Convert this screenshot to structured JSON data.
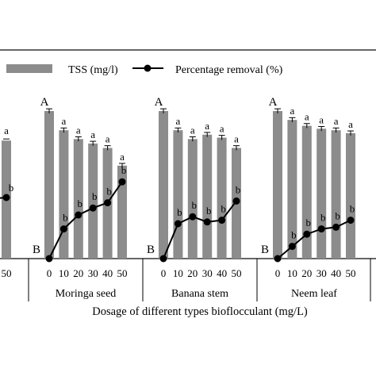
{
  "chart_data": {
    "type": "bar",
    "xlabel": "Dosage of different types bioflocculant (mg/L)",
    "legend": {
      "placement": "top",
      "bar_label": "TSS (mg/l)",
      "line_label": "Percentage removal (%)"
    },
    "colors": {
      "bar": "#8c8c8c",
      "line": "#000000"
    },
    "dosages": [
      "0",
      "10",
      "20",
      "30",
      "40",
      "50"
    ],
    "partial_group": {
      "last_tick": "50",
      "tss_last": 80,
      "removal_last": 35,
      "letter_bar": "a",
      "letter_line": "b"
    },
    "groups": [
      {
        "name": "Moringa seed",
        "tss": [
          100,
          87,
          81,
          78,
          75,
          63
        ],
        "tss_err": [
          1.5,
          1.5,
          1.5,
          1.5,
          1.5,
          1.5
        ],
        "tss_letters": [
          "A",
          "a",
          "a",
          "a",
          "a",
          "a"
        ],
        "removal": [
          0,
          17,
          25,
          29,
          32,
          44
        ],
        "removal_letters": [
          "B",
          "b",
          "b",
          "b",
          "b",
          "b"
        ]
      },
      {
        "name": "Banana stem",
        "tss": [
          100,
          87,
          81,
          84,
          82,
          75
        ],
        "tss_err": [
          1.5,
          1.5,
          1.5,
          1.5,
          1.5,
          1.5
        ],
        "tss_letters": [
          "A",
          "a",
          "a",
          "a",
          "a",
          "a"
        ],
        "removal": [
          0,
          20,
          24,
          21,
          22,
          33
        ],
        "removal_letters": [
          "B",
          "b",
          "b",
          "b",
          "b",
          "b"
        ]
      },
      {
        "name": "Neem leaf",
        "tss": [
          100,
          94,
          90,
          88,
          87,
          85
        ],
        "tss_err": [
          1.5,
          1.5,
          1.5,
          1.5,
          1.5,
          1.5
        ],
        "tss_letters": [
          "A",
          "a",
          "a",
          "a",
          "a",
          "a"
        ],
        "removal": [
          0,
          7,
          14,
          17,
          18,
          22
        ],
        "removal_letters": [
          "B",
          "b",
          "b",
          "b",
          "b",
          "b"
        ]
      }
    ]
  }
}
